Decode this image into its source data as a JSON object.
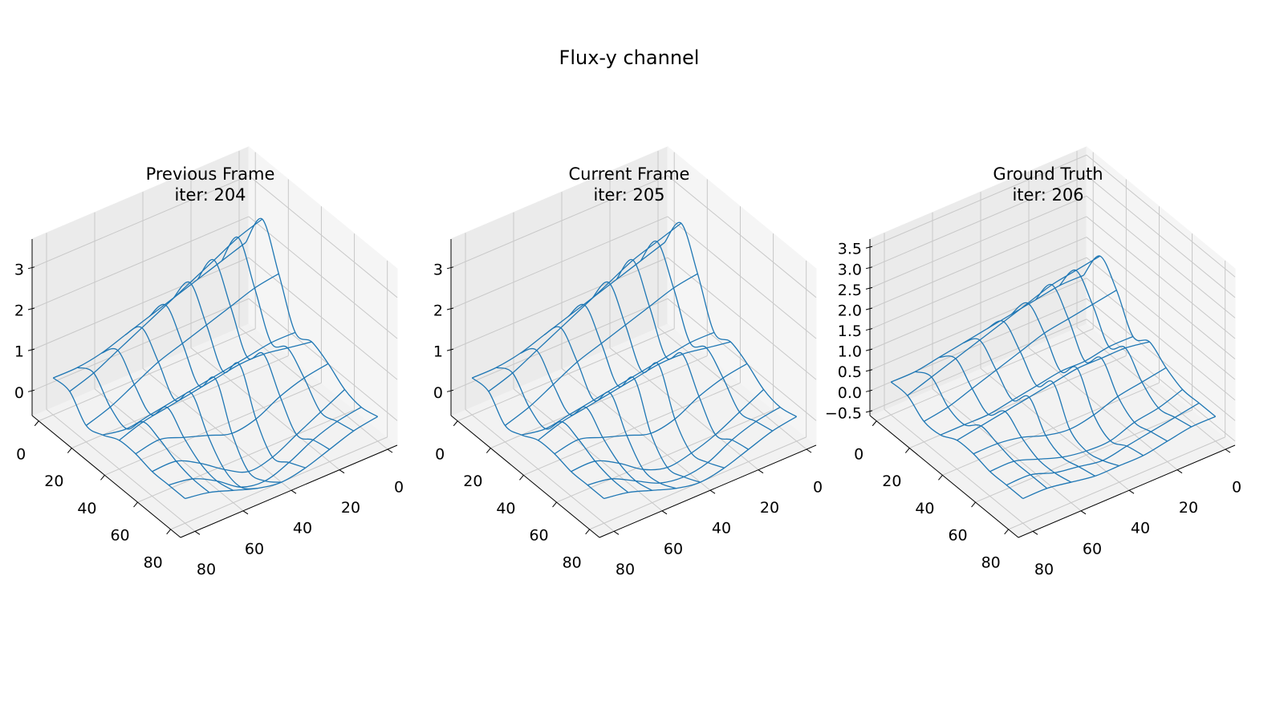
{
  "title": "Flux-y channel",
  "chart_data": [
    {
      "type": "surface",
      "title": "Previous Frame",
      "subtitle": "iter: 204",
      "color": "#1f77b4",
      "grid": true,
      "x": [
        0,
        10,
        20,
        30,
        40,
        50,
        60,
        70,
        80
      ],
      "y": [
        0,
        10,
        20,
        30,
        40,
        50,
        60,
        70,
        80
      ],
      "z": [
        [
          1.6,
          1.4,
          1.2,
          1.0,
          0.8,
          0.6,
          0.4,
          0.3,
          0.3
        ],
        [
          2.5,
          2.3,
          2.0,
          1.7,
          1.4,
          1.1,
          0.8,
          0.5,
          0.3
        ],
        [
          1.5,
          1.4,
          1.2,
          1.0,
          0.8,
          0.6,
          0.3,
          0.0,
          -0.2
        ],
        [
          0.4,
          0.4,
          0.3,
          0.2,
          0.1,
          0.0,
          -0.1,
          -0.2,
          -0.1
        ],
        [
          0.5,
          0.6,
          0.7,
          0.7,
          0.6,
          0.5,
          0.4,
          0.3,
          0.1
        ],
        [
          0.3,
          0.2,
          0.0,
          -0.3,
          -0.4,
          -0.2,
          0.0,
          0.2,
          0.1
        ],
        [
          0.0,
          -0.3,
          -0.6,
          -0.9,
          -1.0,
          -0.7,
          -0.3,
          0.0,
          0.0
        ],
        [
          -0.1,
          -0.2,
          -0.4,
          -0.7,
          -0.9,
          -0.8,
          -0.4,
          -0.1,
          0.0
        ],
        [
          0.0,
          -0.1,
          -0.3,
          -0.5,
          -0.6,
          -0.5,
          -0.3,
          -0.1,
          0.0
        ]
      ],
      "xlim": [
        -4,
        86
      ],
      "ylim": [
        -4,
        86
      ],
      "zlim": [
        -0.6,
        3.7
      ],
      "xticks": [
        0,
        20,
        40,
        60,
        80
      ],
      "yticks": [
        0,
        20,
        40,
        60,
        80
      ],
      "zticks": [
        0,
        1,
        2,
        3
      ]
    },
    {
      "type": "surface",
      "title": "Current Frame",
      "subtitle": "iter: 205",
      "color": "#1f77b4",
      "grid": true,
      "x": [
        0,
        10,
        20,
        30,
        40,
        50,
        60,
        70,
        80
      ],
      "y": [
        0,
        10,
        20,
        30,
        40,
        50,
        60,
        70,
        80
      ],
      "z": [
        [
          1.6,
          1.4,
          1.2,
          1.0,
          0.8,
          0.6,
          0.4,
          0.3,
          0.3
        ],
        [
          2.4,
          2.2,
          2.0,
          1.7,
          1.4,
          1.1,
          0.8,
          0.5,
          0.3
        ],
        [
          1.5,
          1.4,
          1.2,
          1.0,
          0.8,
          0.6,
          0.3,
          0.0,
          -0.2
        ],
        [
          0.4,
          0.4,
          0.3,
          0.2,
          0.1,
          0.0,
          -0.1,
          -0.2,
          -0.1
        ],
        [
          0.5,
          0.6,
          0.7,
          0.7,
          0.6,
          0.5,
          0.4,
          0.3,
          0.1
        ],
        [
          0.3,
          0.2,
          0.0,
          -0.3,
          -0.4,
          -0.2,
          0.0,
          0.2,
          0.1
        ],
        [
          0.0,
          -0.3,
          -0.6,
          -0.8,
          -0.9,
          -0.7,
          -0.3,
          0.0,
          0.0
        ],
        [
          -0.1,
          -0.2,
          -0.4,
          -0.7,
          -0.8,
          -0.7,
          -0.4,
          -0.1,
          0.0
        ],
        [
          0.0,
          -0.1,
          -0.3,
          -0.5,
          -0.6,
          -0.5,
          -0.3,
          -0.1,
          0.0
        ]
      ],
      "xlim": [
        -4,
        86
      ],
      "ylim": [
        -4,
        86
      ],
      "zlim": [
        -0.6,
        3.7
      ],
      "xticks": [
        0,
        20,
        40,
        60,
        80
      ],
      "yticks": [
        0,
        20,
        40,
        60,
        80
      ],
      "zticks": [
        0,
        1,
        2,
        3
      ]
    },
    {
      "type": "surface",
      "title": "Ground Truth",
      "subtitle": "iter: 206",
      "color": "#1f77b4",
      "grid": true,
      "x": [
        0,
        10,
        20,
        30,
        40,
        50,
        60,
        70,
        80
      ],
      "y": [
        0,
        10,
        20,
        30,
        40,
        50,
        60,
        70,
        80
      ],
      "z": [
        [
          0.8,
          0.8,
          0.7,
          0.6,
          0.5,
          0.4,
          0.3,
          0.2,
          0.2
        ],
        [
          1.6,
          1.5,
          1.4,
          1.2,
          1.0,
          0.8,
          0.6,
          0.4,
          0.2
        ],
        [
          1.1,
          1.0,
          0.9,
          0.8,
          0.6,
          0.4,
          0.2,
          0.0,
          -0.1
        ],
        [
          0.3,
          0.3,
          0.2,
          0.2,
          0.1,
          0.0,
          -0.1,
          -0.1,
          -0.1
        ],
        [
          0.5,
          0.6,
          0.6,
          0.6,
          0.5,
          0.4,
          0.3,
          0.2,
          0.1
        ],
        [
          0.2,
          0.1,
          0.0,
          -0.2,
          -0.3,
          -0.2,
          0.0,
          0.1,
          0.1
        ],
        [
          0.0,
          -0.2,
          -0.3,
          -0.5,
          -0.5,
          -0.4,
          -0.2,
          0.0,
          0.0
        ],
        [
          0.0,
          -0.1,
          -0.2,
          -0.3,
          -0.4,
          -0.3,
          -0.2,
          0.0,
          0.0
        ],
        [
          0.0,
          0.0,
          -0.1,
          -0.2,
          -0.2,
          -0.2,
          -0.1,
          0.0,
          0.0
        ]
      ],
      "xlim": [
        -4,
        86
      ],
      "ylim": [
        -4,
        86
      ],
      "zlim": [
        -0.6,
        3.7
      ],
      "xticks": [
        0,
        20,
        40,
        60,
        80
      ],
      "yticks": [
        0,
        20,
        40,
        60,
        80
      ],
      "zticks": [
        {
          "value": -0.5,
          "label": "−0.5"
        },
        {
          "value": 0,
          "label": "0.0"
        },
        0.5,
        {
          "value": 1,
          "label": "1.0"
        },
        1.5,
        {
          "value": 2,
          "label": "2.0"
        },
        2.5,
        {
          "value": 3,
          "label": "3.0"
        },
        3.5
      ]
    }
  ]
}
